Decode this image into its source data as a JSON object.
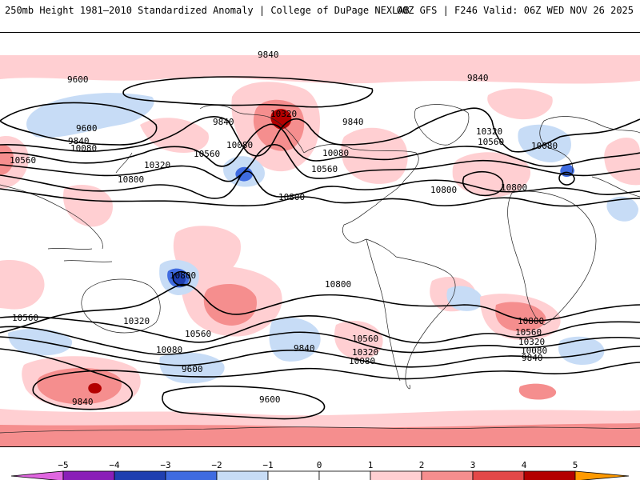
{
  "header": {
    "title_left": "250mb Height 1981–2010 Standardized Anomaly | College of DuPage NEXLAB",
    "title_right": "00Z GFS | F246 Valid: 06Z WED NOV 26 2025"
  },
  "colors": {
    "neg5": "#e066e0",
    "neg4": "#8a1fb8",
    "neg3": "#1f3fb0",
    "neg2": "#3f6be0",
    "neg1": "#c7dcf6",
    "zero": "#ffffff",
    "pos1": "#ffcfd2",
    "pos2": "#f58e8e",
    "pos3": "#e34848",
    "pos4": "#b30000",
    "pos5": "#ff9a00",
    "contour": "#000000",
    "coast": "#222222"
  },
  "contour_labels": {
    "c9600": "9600",
    "c9840": "9840",
    "c10080": "10080",
    "c10320": "10320",
    "c10560": "10560",
    "c10800": "10800"
  },
  "legend": {
    "ticks": [
      "−5",
      "−4",
      "−3",
      "−2",
      "−1",
      "0",
      "1",
      "2",
      "3",
      "4",
      "5"
    ]
  }
}
